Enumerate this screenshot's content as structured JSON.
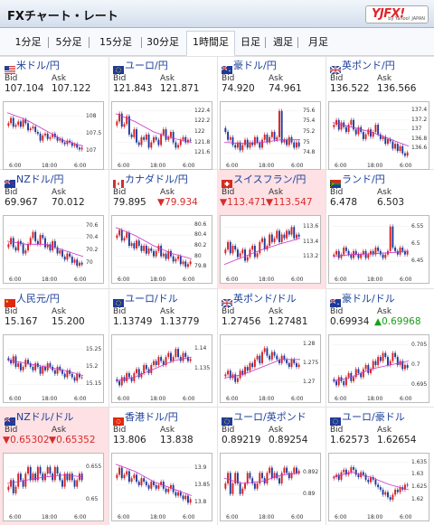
{
  "header": {
    "title": "FXチャート・レート",
    "logo_text": "YJFX!",
    "logo_sub": "by Yahoo! JAPAN"
  },
  "tabs": [
    {
      "label": "1分足",
      "active": false
    },
    {
      "label": "5分足",
      "active": false
    },
    {
      "label": "15分足",
      "active": false
    },
    {
      "label": "30分足",
      "active": false
    },
    {
      "label": "1時間足",
      "active": true
    },
    {
      "label": "日足",
      "active": false
    },
    {
      "label": "週足",
      "active": false
    },
    {
      "label": "月足",
      "active": false
    }
  ],
  "labels": {
    "bid": "Bid",
    "ask": "Ask"
  },
  "colors": {
    "up": "#1aa01a",
    "down": "#d92c2c",
    "alert_bg": "#fde1e4",
    "candle_up": "#d62020",
    "candle_down": "#1e3a9a",
    "ma": "#cc33cc"
  },
  "pairs": [
    {
      "name": "米ドル/円",
      "flag": "us",
      "bid": "107.104",
      "ask": "107.122",
      "bid_dir": "",
      "ask_dir": "",
      "highlight": false,
      "chart_data": {
        "type": "candlestick",
        "yticks": [
          "108",
          "107.5",
          "107"
        ],
        "xticks": [
          "6:00",
          "18:00",
          "6:00"
        ],
        "ylim": [
          106.8,
          108.3
        ],
        "close": [
          107.8,
          107.95,
          107.7,
          107.75,
          107.85,
          107.7,
          107.9,
          107.8,
          107.6,
          107.65,
          107.7,
          107.55,
          107.5,
          107.3,
          107.45,
          107.5,
          107.35,
          107.4,
          107.5,
          107.4,
          107.3,
          107.35,
          107.25,
          107.2,
          107.3,
          107.25,
          107.15,
          107.2,
          107.1,
          107.05,
          107.1
        ],
        "ma": [
          108.1,
          107.9,
          107.6,
          107.3,
          107.15
        ]
      }
    },
    {
      "name": "ユーロ/円",
      "flag": "eu",
      "bid": "121.843",
      "ask": "121.871",
      "bid_dir": "",
      "ask_dir": "",
      "highlight": false,
      "chart_data": {
        "type": "candlestick",
        "yticks": [
          "122.4",
          "122.2",
          "122",
          "121.8",
          "121.6"
        ],
        "xticks": [
          "6:00",
          "18:00",
          "6:00"
        ],
        "ylim": [
          121.5,
          122.5
        ],
        "close": [
          122.2,
          122.35,
          122.1,
          122.15,
          122.3,
          121.95,
          121.9,
          122.05,
          121.8,
          121.75,
          121.9,
          121.85,
          121.95,
          121.7,
          121.8,
          121.9,
          121.85,
          121.75,
          121.95,
          122.05,
          121.85,
          121.9,
          122.0,
          121.8,
          121.7,
          121.75,
          121.85,
          121.9,
          121.8,
          121.85,
          121.84
        ],
        "ma": [
          122.35,
          122.2,
          122.0,
          121.88,
          121.8
        ]
      }
    },
    {
      "name": "豪ドル/円",
      "flag": "au",
      "bid": "74.920",
      "ask": "74.961",
      "bid_dir": "",
      "ask_dir": "",
      "highlight": false,
      "chart_data": {
        "type": "candlestick",
        "yticks": [
          "75.6",
          "75.4",
          "75.2",
          "75",
          "74.8"
        ],
        "xticks": [
          "6:00",
          "18:00",
          "6:00"
        ],
        "ylim": [
          74.7,
          75.7
        ],
        "close": [
          75.2,
          75.05,
          75.1,
          74.95,
          74.9,
          75.0,
          74.85,
          74.95,
          75.05,
          74.9,
          75.0,
          74.95,
          75.1,
          75.0,
          74.9,
          75.05,
          75.15,
          75.0,
          75.1,
          75.2,
          75.05,
          75.1,
          75.6,
          75.0,
          75.05,
          74.95,
          75.1,
          75.0,
          74.9,
          75.0,
          74.92
        ],
        "ma": [
          75.0,
          74.98,
          75.0,
          75.05,
          75.05
        ]
      }
    },
    {
      "name": "英ポンド/円",
      "flag": "uk",
      "bid": "136.522",
      "ask": "136.566",
      "bid_dir": "",
      "ask_dir": "",
      "highlight": false,
      "chart_data": {
        "type": "candlestick",
        "yticks": [
          "137.4",
          "137.2",
          "137",
          "136.8",
          "136.6"
        ],
        "xticks": [
          "6:00",
          "18:00",
          "6:00"
        ],
        "ylim": [
          136.4,
          137.5
        ],
        "close": [
          137.1,
          137.2,
          137.0,
          137.15,
          137.05,
          136.95,
          137.1,
          137.2,
          137.0,
          136.9,
          137.05,
          136.95,
          136.8,
          136.9,
          137.0,
          136.85,
          136.95,
          137.1,
          136.9,
          136.8,
          136.85,
          136.7,
          136.8,
          136.75,
          136.6,
          136.7,
          136.55,
          136.65,
          136.5,
          136.45,
          136.52
        ],
        "ma": [
          137.15,
          137.05,
          136.95,
          136.8,
          136.65
        ]
      }
    },
    {
      "name": "NZドル/円",
      "flag": "nz",
      "bid": "69.967",
      "ask": "70.012",
      "bid_dir": "",
      "ask_dir": "",
      "highlight": false,
      "chart_data": {
        "type": "candlestick",
        "yticks": [
          "70.6",
          "70.4",
          "70.2",
          "70"
        ],
        "xticks": [
          "6:00",
          "18:00",
          "6:00"
        ],
        "ylim": [
          69.85,
          70.7
        ],
        "close": [
          70.3,
          70.4,
          70.25,
          70.2,
          70.35,
          70.3,
          70.15,
          70.2,
          70.3,
          70.4,
          70.5,
          70.35,
          70.3,
          70.45,
          70.4,
          70.25,
          70.3,
          70.2,
          70.35,
          70.25,
          70.15,
          70.2,
          70.1,
          70.05,
          70.15,
          70.1,
          70.0,
          70.05,
          69.95,
          70.0,
          69.97
        ],
        "ma": [
          70.35,
          70.3,
          70.3,
          70.2,
          70.1
        ]
      }
    },
    {
      "name": "カナダドル/円",
      "flag": "ca",
      "bid": "79.895",
      "ask": "79.934",
      "bid_dir": "",
      "ask_dir": "down",
      "highlight": false,
      "chart_data": {
        "type": "candlestick",
        "yticks": [
          "80.6",
          "80.4",
          "80.2",
          "80",
          "79.8"
        ],
        "xticks": [
          "6:00",
          "18:00",
          "6:00"
        ],
        "ylim": [
          79.7,
          80.7
        ],
        "close": [
          80.4,
          80.5,
          80.3,
          80.35,
          80.45,
          80.2,
          80.25,
          80.15,
          80.3,
          80.2,
          80.1,
          80.2,
          80.05,
          80.15,
          80.1,
          80.0,
          80.1,
          80.2,
          80.0,
          80.05,
          79.95,
          80.1,
          80.0,
          79.9,
          79.95,
          80.0,
          79.85,
          79.9,
          79.8,
          79.85,
          79.9
        ],
        "ma": [
          80.55,
          80.4,
          80.2,
          80.05,
          79.95
        ]
      }
    },
    {
      "name": "スイスフラン/円",
      "flag": "ch",
      "bid": "113.471",
      "ask": "113.547",
      "bid_dir": "down",
      "ask_dir": "down",
      "highlight": true,
      "chart_data": {
        "type": "candlestick",
        "yticks": [
          "113.6",
          "113.4",
          "113.2"
        ],
        "xticks": [
          "6:00",
          "18:00",
          "6:00"
        ],
        "ylim": [
          113.0,
          113.7
        ],
        "close": [
          113.3,
          113.4,
          113.25,
          113.35,
          113.3,
          113.2,
          113.25,
          113.3,
          113.15,
          113.2,
          113.3,
          113.35,
          113.2,
          113.25,
          113.4,
          113.45,
          113.3,
          113.35,
          113.5,
          113.4,
          113.45,
          113.55,
          113.4,
          113.5,
          113.45,
          113.55,
          113.5,
          113.6,
          113.45,
          113.5,
          113.47
        ],
        "ma": [
          113.1,
          113.2,
          113.3,
          113.38,
          113.45
        ]
      }
    },
    {
      "name": "ランド/円",
      "flag": "za",
      "bid": "6.478",
      "ask": "6.503",
      "bid_dir": "",
      "ask_dir": "",
      "highlight": false,
      "chart_data": {
        "type": "candlestick",
        "yticks": [
          "6.55",
          "6.5",
          "6.45"
        ],
        "xticks": [
          "6:00",
          "18:00",
          "6:00"
        ],
        "ylim": [
          6.42,
          6.57
        ],
        "close": [
          6.47,
          6.48,
          6.46,
          6.47,
          6.49,
          6.48,
          6.47,
          6.46,
          6.48,
          6.47,
          6.46,
          6.47,
          6.48,
          6.46,
          6.47,
          6.48,
          6.47,
          6.49,
          6.48,
          6.47,
          6.46,
          6.47,
          6.48,
          6.55,
          6.49,
          6.48,
          6.47,
          6.49,
          6.48,
          6.47,
          6.48
        ],
        "ma": [
          6.465,
          6.47,
          6.472,
          6.475,
          6.48
        ]
      }
    },
    {
      "name": "人民元/円",
      "flag": "cn",
      "bid": "15.167",
      "ask": "15.200",
      "bid_dir": "",
      "ask_dir": "",
      "highlight": false,
      "chart_data": {
        "type": "candlestick",
        "yticks": [
          "15.25",
          "15.2",
          "15.15"
        ],
        "xticks": [
          "6:00",
          "18:00",
          "6:00"
        ],
        "ylim": [
          15.13,
          15.28
        ],
        "close": [
          15.22,
          15.21,
          15.23,
          15.2,
          15.21,
          15.19,
          15.2,
          15.22,
          15.21,
          15.2,
          15.19,
          15.21,
          15.2,
          15.18,
          15.2,
          15.19,
          15.21,
          15.2,
          15.19,
          15.18,
          15.2,
          15.19,
          15.18,
          15.17,
          15.19,
          15.18,
          15.17,
          15.16,
          15.18,
          15.17,
          15.17
        ],
        "ma": [
          15.22,
          15.21,
          15.2,
          15.19,
          15.175
        ]
      }
    },
    {
      "name": "ユーロ/ドル",
      "flag": "eu",
      "bid": "1.13749",
      "ask": "1.13779",
      "bid_dir": "",
      "ask_dir": "",
      "highlight": false,
      "chart_data": {
        "type": "candlestick",
        "yticks": [
          "1.14",
          "1.135"
        ],
        "xticks": [
          "6:00",
          "18:00",
          "6:00"
        ],
        "ylim": [
          1.1295,
          1.1425
        ],
        "close": [
          1.132,
          1.131,
          1.133,
          1.132,
          1.134,
          1.133,
          1.132,
          1.134,
          1.135,
          1.133,
          1.134,
          1.136,
          1.135,
          1.134,
          1.136,
          1.137,
          1.136,
          1.138,
          1.137,
          1.136,
          1.138,
          1.139,
          1.137,
          1.138,
          1.14,
          1.138,
          1.137,
          1.139,
          1.138,
          1.137,
          1.1375
        ],
        "ma": [
          1.132,
          1.133,
          1.135,
          1.137,
          1.138
        ]
      }
    },
    {
      "name": "英ポンド/ドル",
      "flag": "uk",
      "bid": "1.27456",
      "ask": "1.27481",
      "bid_dir": "",
      "ask_dir": "",
      "highlight": false,
      "chart_data": {
        "type": "candlestick",
        "yticks": [
          "1.28",
          "1.275",
          "1.27"
        ],
        "xticks": [
          "6:00",
          "18:00",
          "6:00"
        ],
        "ylim": [
          1.2675,
          1.2815
        ],
        "close": [
          1.272,
          1.273,
          1.271,
          1.272,
          1.27,
          1.271,
          1.273,
          1.272,
          1.274,
          1.273,
          1.275,
          1.274,
          1.276,
          1.277,
          1.275,
          1.278,
          1.279,
          1.277,
          1.276,
          1.278,
          1.277,
          1.276,
          1.275,
          1.277,
          1.276,
          1.275,
          1.274,
          1.276,
          1.275,
          1.274,
          1.2746
        ],
        "ma": [
          1.271,
          1.272,
          1.274,
          1.276,
          1.276
        ]
      }
    },
    {
      "name": "豪ドル/ドル",
      "flag": "au",
      "bid": "0.69934",
      "ask": "0.69968",
      "bid_dir": "",
      "ask_dir": "up",
      "highlight": false,
      "chart_data": {
        "type": "candlestick",
        "yticks": [
          "0.705",
          "0.7",
          "0.695"
        ],
        "xticks": [
          "6:00",
          "18:00",
          "6:00"
        ],
        "ylim": [
          0.6935,
          0.7065
        ],
        "close": [
          0.696,
          0.695,
          0.697,
          0.696,
          0.695,
          0.697,
          0.698,
          0.696,
          0.697,
          0.699,
          0.698,
          0.697,
          0.699,
          0.7,
          0.698,
          0.699,
          0.701,
          0.7,
          0.702,
          0.701,
          0.703,
          0.702,
          0.7,
          0.701,
          0.703,
          0.702,
          0.7,
          0.701,
          0.699,
          0.7,
          0.6993
        ],
        "ma": [
          0.696,
          0.697,
          0.699,
          0.7,
          0.701
        ]
      }
    },
    {
      "name": "NZドル/ドル",
      "flag": "nz",
      "bid": "0.65302",
      "ask": "0.65352",
      "bid_dir": "down",
      "ask_dir": "down",
      "highlight": true,
      "chart_data": {
        "type": "candlestick",
        "yticks": [
          "0.655",
          "0.65"
        ],
        "xticks": [
          "6:00",
          "18:00",
          "6:00"
        ],
        "ylim": [
          0.6485,
          0.6565
        ],
        "close": [
          0.652,
          0.653,
          0.651,
          0.652,
          0.654,
          0.653,
          0.652,
          0.654,
          0.655,
          0.653,
          0.654,
          0.653,
          0.655,
          0.654,
          0.653,
          0.654,
          0.655,
          0.654,
          0.653,
          0.655,
          0.654,
          0.653,
          0.652,
          0.654,
          0.653,
          0.654,
          0.653,
          0.652,
          0.653,
          0.654,
          0.653
        ],
        "ma": [
          0.6525,
          0.653,
          0.6535,
          0.6538,
          0.6535
        ]
      }
    },
    {
      "name": "香港ドル/円",
      "flag": "hk",
      "bid": "13.806",
      "ask": "13.838",
      "bid_dir": "",
      "ask_dir": "",
      "highlight": false,
      "chart_data": {
        "type": "candlestick",
        "yticks": [
          "13.9",
          "13.85",
          "13.8"
        ],
        "xticks": [
          "6:00",
          "18:00",
          "6:00"
        ],
        "ylim": [
          13.78,
          13.93
        ],
        "close": [
          13.88,
          13.9,
          13.87,
          13.88,
          13.89,
          13.86,
          13.87,
          13.88,
          13.86,
          13.85,
          13.87,
          13.86,
          13.85,
          13.84,
          13.86,
          13.85,
          13.84,
          13.85,
          13.86,
          13.84,
          13.83,
          13.84,
          13.85,
          13.83,
          13.82,
          13.83,
          13.82,
          13.81,
          13.82,
          13.8,
          13.81
        ],
        "ma": [
          13.91,
          13.89,
          13.86,
          13.84,
          13.82
        ]
      }
    },
    {
      "name": "ユーロ/英ポンド",
      "flag": "eu",
      "bid": "0.89219",
      "ask": "0.89254",
      "bid_dir": "",
      "ask_dir": "",
      "highlight": false,
      "chart_data": {
        "type": "candlestick",
        "yticks": [
          "0.892",
          "0.89"
        ],
        "xticks": [
          "6:00",
          "18:00",
          "6:00"
        ],
        "ylim": [
          0.8885,
          0.8935
        ],
        "close": [
          0.891,
          0.892,
          0.89,
          0.891,
          0.892,
          0.891,
          0.89,
          0.8905,
          0.891,
          0.892,
          0.8915,
          0.891,
          0.8905,
          0.891,
          0.892,
          0.8915,
          0.891,
          0.892,
          0.8925,
          0.8915,
          0.892,
          0.8915,
          0.891,
          0.892,
          0.8925,
          0.892,
          0.8915,
          0.892,
          0.8925,
          0.892,
          0.8922
        ],
        "ma": [
          0.8915,
          0.891,
          0.8912,
          0.8918,
          0.892
        ]
      }
    },
    {
      "name": "ユーロ/豪ドル",
      "flag": "eu",
      "bid": "1.62573",
      "ask": "1.62654",
      "bid_dir": "",
      "ask_dir": "",
      "highlight": false,
      "chart_data": {
        "type": "candlestick",
        "yticks": [
          "1.635",
          "1.63",
          "1.625",
          "1.62"
        ],
        "xticks": [
          "6:00",
          "18:00",
          "6:00"
        ],
        "ylim": [
          1.616,
          1.637
        ],
        "close": [
          1.629,
          1.63,
          1.628,
          1.631,
          1.632,
          1.63,
          1.631,
          1.633,
          1.632,
          1.63,
          1.629,
          1.631,
          1.63,
          1.628,
          1.627,
          1.629,
          1.628,
          1.626,
          1.625,
          1.624,
          1.622,
          1.623,
          1.621,
          1.62,
          1.622,
          1.624,
          1.623,
          1.625,
          1.624,
          1.626,
          1.6257
        ],
        "ma": [
          1.629,
          1.631,
          1.629,
          1.626,
          1.624
        ]
      }
    }
  ]
}
